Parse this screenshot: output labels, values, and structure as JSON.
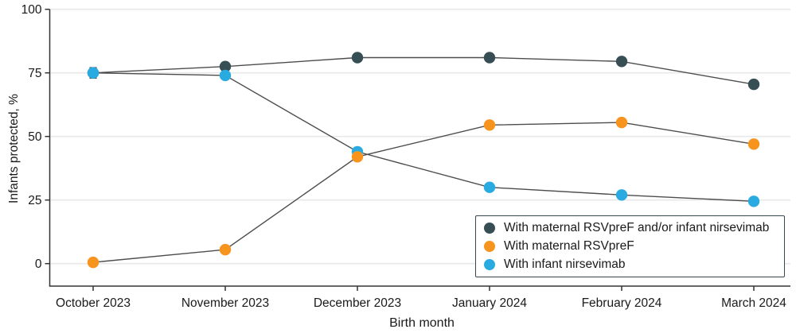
{
  "figure": {
    "ylabel": "Infants protected, %",
    "xlabel": "Birth month"
  },
  "colors": {
    "axis": "#333333",
    "grid": "#e8e8e8",
    "tick_text": "#1a1a1a",
    "line": "#4d4d4d",
    "error_bar": "#3e4c54",
    "background": "#ffffff",
    "legend_border": "#37474f"
  },
  "chart_data": {
    "type": "line",
    "title": "",
    "xlabel": "Birth month",
    "ylabel": "Infants protected, %",
    "categories": [
      "October 2023",
      "November 2023",
      "December 2023",
      "January 2024",
      "February 2024",
      "March 2024"
    ],
    "y_ticks": [
      0,
      25,
      50,
      75,
      100
    ],
    "ylim": [
      0,
      100
    ],
    "grid": "horizontal",
    "legend_position": "bottom-right",
    "marker": "circle",
    "error_bars": true,
    "series": [
      {
        "name": "With maternal RSVpreF and/or infant nirsevimab",
        "color": "#374e55",
        "values": [
          75,
          77.5,
          81,
          81,
          79.5,
          70.5
        ],
        "errors": [
          1.5,
          1.5,
          1,
          1,
          1,
          1.5
        ]
      },
      {
        "name": "With maternal RSVpreF",
        "color": "#f7941e",
        "values": [
          0.5,
          5.5,
          42,
          54.5,
          55.5,
          47
        ],
        "errors": [
          0.5,
          1,
          1.5,
          1.5,
          1.5,
          1.5
        ]
      },
      {
        "name": "With infant nirsevimab",
        "color": "#29abe2",
        "values": [
          75,
          74,
          44,
          30,
          27,
          24.5
        ],
        "errors": [
          2,
          1.5,
          1.5,
          1.5,
          1.5,
          1.5
        ]
      }
    ]
  }
}
